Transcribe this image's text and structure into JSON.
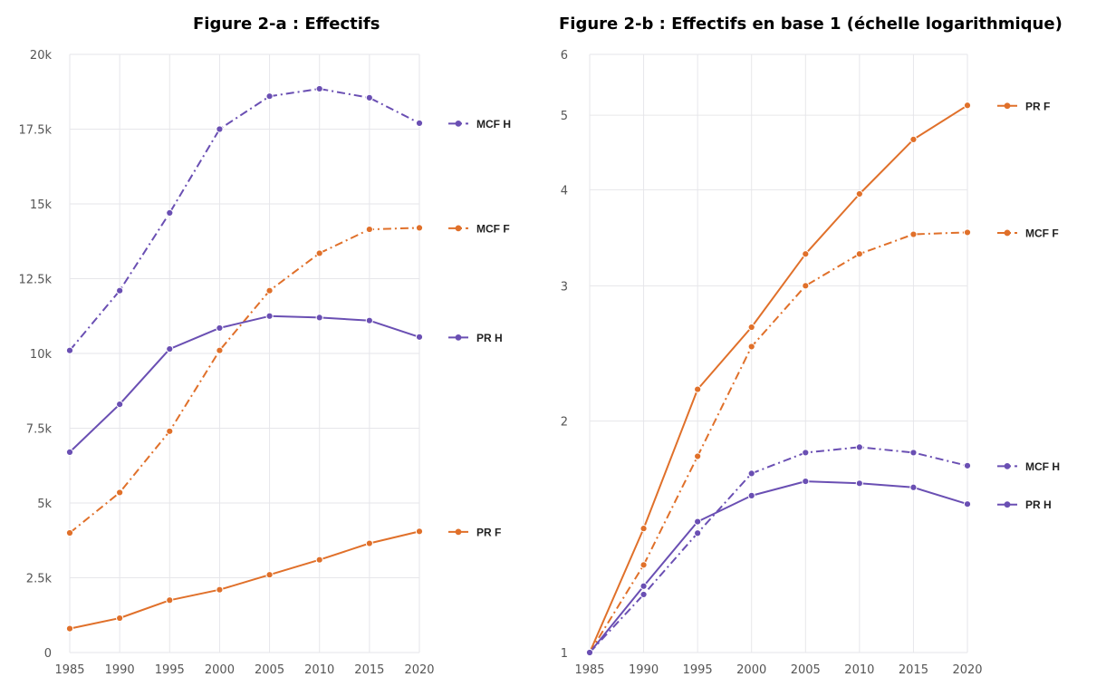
{
  "chart_data": [
    {
      "type": "line",
      "title": "Figure 2-a : Effectifs",
      "xlabel": "",
      "ylabel": "",
      "x": [
        1985,
        1990,
        1995,
        2000,
        2005,
        2010,
        2015,
        2020
      ],
      "ylim": [
        0,
        20000
      ],
      "yscale": "linear",
      "yticks": [
        0,
        2500,
        5000,
        7500,
        10000,
        12500,
        15000,
        17500,
        20000
      ],
      "ytick_labels": [
        "0",
        "2.5k",
        "5k",
        "7.5k",
        "10k",
        "12.5k",
        "15k",
        "17.5k",
        "20k"
      ],
      "grid": true,
      "legend_placement": "right",
      "series": [
        {
          "name": "MCF H",
          "color": "#6a4fb3",
          "linestyle": "dashdot",
          "values": [
            10100,
            12100,
            14700,
            17500,
            18600,
            18850,
            18550,
            17700
          ]
        },
        {
          "name": "MCF F",
          "color": "#e0702a",
          "linestyle": "dashdot",
          "values": [
            4000,
            5350,
            7400,
            10100,
            12100,
            13350,
            14150,
            14200
          ]
        },
        {
          "name": "PR H",
          "color": "#6a4fb3",
          "linestyle": "solid",
          "values": [
            6700,
            8300,
            10150,
            10850,
            11250,
            11200,
            11100,
            10550
          ]
        },
        {
          "name": "PR F",
          "color": "#e0702a",
          "linestyle": "solid",
          "values": [
            800,
            1150,
            1750,
            2100,
            2600,
            3100,
            3650,
            4050
          ]
        }
      ]
    },
    {
      "type": "line",
      "title": "Figure 2-b : Effectifs en base 1 (échelle logarithmique)",
      "xlabel": "",
      "ylabel": "",
      "x": [
        1985,
        1990,
        1995,
        2000,
        2005,
        2010,
        2015,
        2020
      ],
      "ylim": [
        1,
        6
      ],
      "yscale": "log",
      "yticks": [
        1,
        2,
        3,
        4,
        5,
        6
      ],
      "ytick_labels": [
        "1",
        "2",
        "3",
        "4",
        "5",
        "6"
      ],
      "grid": true,
      "legend_placement": "right",
      "series": [
        {
          "name": "PR F",
          "color": "#e0702a",
          "linestyle": "solid",
          "values": [
            1.0,
            1.45,
            2.2,
            2.65,
            3.3,
            3.95,
            4.65,
            5.15
          ]
        },
        {
          "name": "MCF F",
          "color": "#e0702a",
          "linestyle": "dashdot",
          "values": [
            1.0,
            1.3,
            1.8,
            2.5,
            3.0,
            3.3,
            3.5,
            3.52
          ]
        },
        {
          "name": "MCF H",
          "color": "#6a4fb3",
          "linestyle": "dashdot",
          "values": [
            1.0,
            1.19,
            1.43,
            1.71,
            1.82,
            1.85,
            1.82,
            1.75
          ]
        },
        {
          "name": "PR H",
          "color": "#6a4fb3",
          "linestyle": "solid",
          "values": [
            1.0,
            1.22,
            1.48,
            1.6,
            1.67,
            1.66,
            1.64,
            1.56
          ]
        }
      ]
    }
  ]
}
